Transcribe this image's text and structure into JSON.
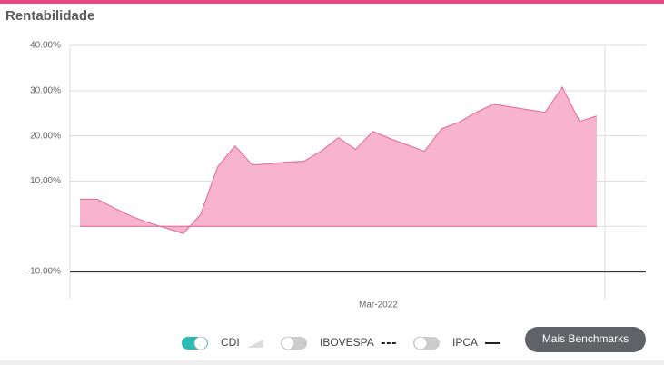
{
  "chart_data": {
    "type": "area",
    "title": "Rentabilidade",
    "categories": [
      null,
      null,
      null,
      null,
      null,
      null,
      null,
      null,
      null,
      null,
      null,
      null,
      null,
      null,
      null,
      null,
      null,
      "Mar-2022",
      null,
      null,
      null,
      null,
      null,
      null,
      null,
      null,
      null,
      null,
      null,
      null,
      null
    ],
    "values": [
      6.0,
      6.0,
      4.0,
      2.2,
      0.8,
      -0.4,
      -1.6,
      2.6,
      13.2,
      17.8,
      13.6,
      13.8,
      14.2,
      14.4,
      16.6,
      19.6,
      17.0,
      21.0,
      19.4,
      18.0,
      16.6,
      21.6,
      23.0,
      25.2,
      27.0,
      26.4,
      25.8,
      25.2,
      30.8,
      23.2,
      24.4
    ],
    "color": "#e56596",
    "fill": "#f8b3cd",
    "ylim": [
      -15.6,
      40
    ],
    "yticks": [
      {
        "value": 40,
        "label": "40.00%"
      },
      {
        "value": 30,
        "label": "30.00%"
      },
      {
        "value": 20,
        "label": "20.00%"
      },
      {
        "value": 10,
        "label": "10.00%"
      },
      {
        "value": 0,
        "label": null
      },
      {
        "value": -10,
        "label": "-10.00%"
      }
    ],
    "dark_gridline": -10,
    "grid": true
  },
  "toggles": [
    {
      "label": "CDI",
      "on": true
    },
    {
      "label": "IBOVESPA",
      "on": false
    },
    {
      "label": "IPCA",
      "on": false
    }
  ],
  "button": {
    "label": "Mais Benchmarks"
  }
}
